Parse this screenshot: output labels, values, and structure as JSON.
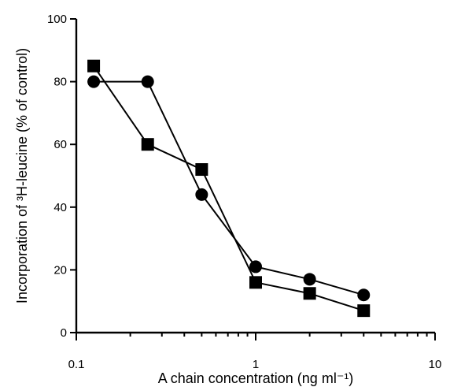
{
  "chart_data": {
    "type": "line",
    "x_scale": "log",
    "xlim": [
      0.1,
      10
    ],
    "ylim": [
      0,
      100
    ],
    "xlabel": "A chain concentration (ng ml⁻¹)",
    "ylabel": "Incorporation of ³H-leucine (% of control)",
    "x_ticks": [
      0.1,
      1,
      10
    ],
    "x_tick_labels": [
      "0.1",
      "1",
      "10"
    ],
    "y_ticks": [
      0,
      20,
      40,
      60,
      80,
      100
    ],
    "y_tick_labels": [
      "0",
      "20",
      "40",
      "60",
      "80",
      "100"
    ],
    "grid": false,
    "series": [
      {
        "marker": "circle",
        "x": [
          0.125,
          0.25,
          0.5,
          1,
          2,
          4
        ],
        "values": [
          80,
          80,
          44,
          21,
          17,
          12
        ]
      },
      {
        "marker": "square",
        "x": [
          0.125,
          0.25,
          0.5,
          1,
          2,
          4
        ],
        "values": [
          85,
          60,
          52,
          16,
          12.5,
          7
        ]
      }
    ]
  }
}
